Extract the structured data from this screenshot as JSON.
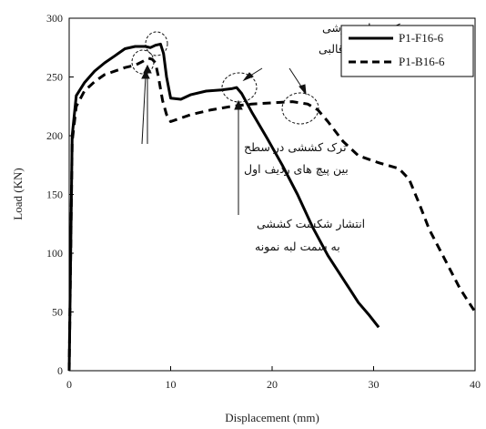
{
  "chart_data": {
    "type": "line",
    "xlabel": "Displacement (mm)",
    "ylabel": "Load (KN)",
    "xlim": [
      0,
      40
    ],
    "ylim": [
      0,
      300
    ],
    "xticks": [
      0,
      10,
      20,
      30,
      40
    ],
    "yticks": [
      0,
      50,
      100,
      150,
      200,
      250,
      300
    ],
    "grid": false,
    "legend_position": "top-right",
    "series": [
      {
        "name": "P1-F16-6",
        "style": "solid",
        "x": [
          0,
          0.3,
          0.7,
          1.5,
          2.5,
          3.5,
          4.5,
          5.5,
          6.5,
          7.5,
          8.0,
          8.5,
          9.0,
          9.3,
          9.6,
          10.0,
          11.0,
          12.0,
          13.5,
          15.0,
          16.0,
          16.5,
          17.0,
          18.0,
          19.5,
          21.0,
          22.5,
          24.0,
          25.5,
          27.0,
          28.5,
          29.5,
          30.5
        ],
        "y": [
          0,
          200,
          234,
          245,
          255,
          262,
          268,
          274,
          276,
          276,
          275,
          277,
          278,
          270,
          250,
          232,
          231,
          235,
          238,
          239,
          240,
          241,
          236,
          220,
          198,
          175,
          150,
          122,
          98,
          78,
          58,
          48,
          37
        ]
      },
      {
        "name": "P1-B16-6",
        "style": "dashed",
        "x": [
          0,
          0.3,
          0.7,
          1.5,
          2.5,
          3.5,
          4.5,
          5.5,
          6.5,
          7.2,
          7.8,
          8.2,
          8.5,
          8.8,
          9.2,
          9.6,
          10.0,
          12.0,
          14.0,
          16.0,
          18.0,
          20.0,
          22.0,
          23.5,
          24.5,
          25.5,
          27.0,
          28.5,
          30.5,
          32.5,
          33.5,
          34.5,
          35.5,
          37.0,
          38.5,
          40.0
        ],
        "y": [
          0,
          195,
          225,
          238,
          246,
          252,
          255,
          258,
          260,
          263,
          266,
          265,
          262,
          250,
          230,
          218,
          212,
          218,
          222,
          225,
          227,
          228,
          229,
          227,
          222,
          212,
          195,
          183,
          177,
          172,
          163,
          142,
          120,
          95,
          70,
          50
        ]
      }
    ],
    "annotations": [
      {
        "lines": [
          "ترک سطوح برشی",
          "حوزه برش قالبی"
        ]
      },
      {
        "lines": [
          "ترک کششی در سطح",
          "بین پیچ های ردیف اول"
        ]
      },
      {
        "lines": [
          "انتشار شکست کششی",
          "به سمت لبه نمونه"
        ]
      }
    ]
  }
}
